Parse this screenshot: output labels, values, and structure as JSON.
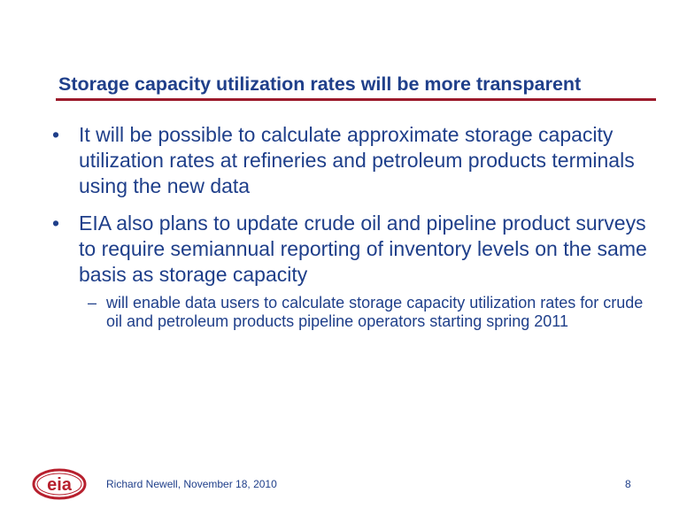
{
  "slide": {
    "title": "Storage capacity utilization rates will be more transparent",
    "bullets": [
      {
        "marker": "•",
        "text": "It will be possible to calculate approximate storage capacity utilization rates at refineries and petroleum products terminals using the new data"
      },
      {
        "marker": "•",
        "text": "EIA also plans to update crude oil and pipeline product surveys to require semiannual reporting of inventory levels on the same basis as storage capacity"
      }
    ],
    "sub_bullets": [
      {
        "marker": "–",
        "text": "will enable data users to calculate storage capacity utilization rates for crude oil and petroleum products pipeline operators starting spring 2011"
      }
    ]
  },
  "footer": {
    "logo_text": "eia",
    "presenter": "Richard Newell, November 18, 2010",
    "page_number": "8"
  },
  "colors": {
    "title_blue": "#1f3f8a",
    "rule_red": "#9c1a2b",
    "logo_red": "#b7202e"
  }
}
